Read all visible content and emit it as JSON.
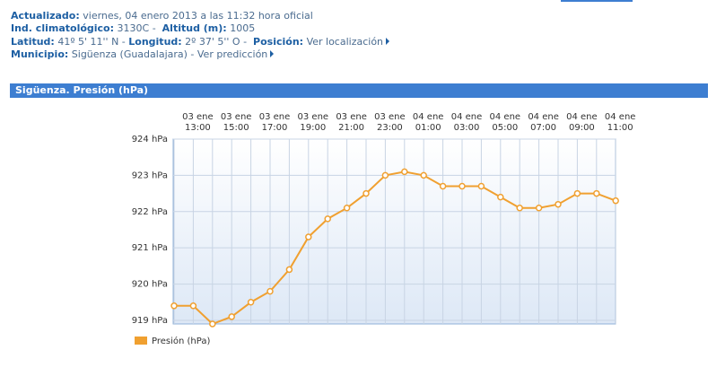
{
  "header": {
    "updated_label": "Actualizado:",
    "updated": "viernes, 04 enero 2013 a las 11:32 hora oficial",
    "station_label": "Ind. climatológico:",
    "station": "3130C -",
    "altitude_label": "Altitud (m):",
    "altitude": "1005",
    "lat_label": "Latitud:",
    "lat": "41º 5' 11'' N -",
    "lon_label": "Longitud:",
    "lon": "2º 37' 5'' O -",
    "position_label": "Posición:",
    "position_link": "Ver localización",
    "municipality_label": "Municipio:",
    "municipality": "Sigüenza (Guadalajara) -",
    "forecast_link": "Ver predicción"
  },
  "chart_data": {
    "type": "line",
    "title": "Sigüenza. Presión (hPa)",
    "categories": [
      null,
      "03 ene\n13:00",
      null,
      "03 ene\n15:00",
      null,
      "03 ene\n17:00",
      null,
      "03 ene\n19:00",
      null,
      "03 ene\n21:00",
      null,
      "03 ene\n23:00",
      null,
      "04 ene\n01:00",
      null,
      "04 ene\n03:00",
      null,
      "04 ene\n05:00",
      null,
      "04 ene\n07:00",
      null,
      "04 ene\n09:00",
      null,
      "04 ene\n11:00"
    ],
    "series": [
      {
        "name": "Presión (hPa)",
        "color": "#f0a030",
        "values": [
          919.4,
          919.4,
          918.9,
          919.1,
          919.5,
          919.8,
          920.4,
          921.3,
          921.8,
          922.1,
          922.5,
          923.0,
          923.1,
          923.0,
          922.7,
          922.7,
          922.7,
          922.4,
          922.1,
          922.1,
          922.2,
          922.5,
          922.5,
          922.3
        ]
      }
    ],
    "ylim": [
      918.9,
      924
    ],
    "yticks": [
      {
        "value": 919,
        "label": "919 hPa"
      },
      {
        "value": 920,
        "label": "920 hPa"
      },
      {
        "value": 921,
        "label": "921 hPa"
      },
      {
        "value": 922,
        "label": "922 hPa"
      },
      {
        "value": 923,
        "label": "923 hPa"
      },
      {
        "value": 924,
        "label": "924 hPa"
      }
    ],
    "grid": true
  }
}
